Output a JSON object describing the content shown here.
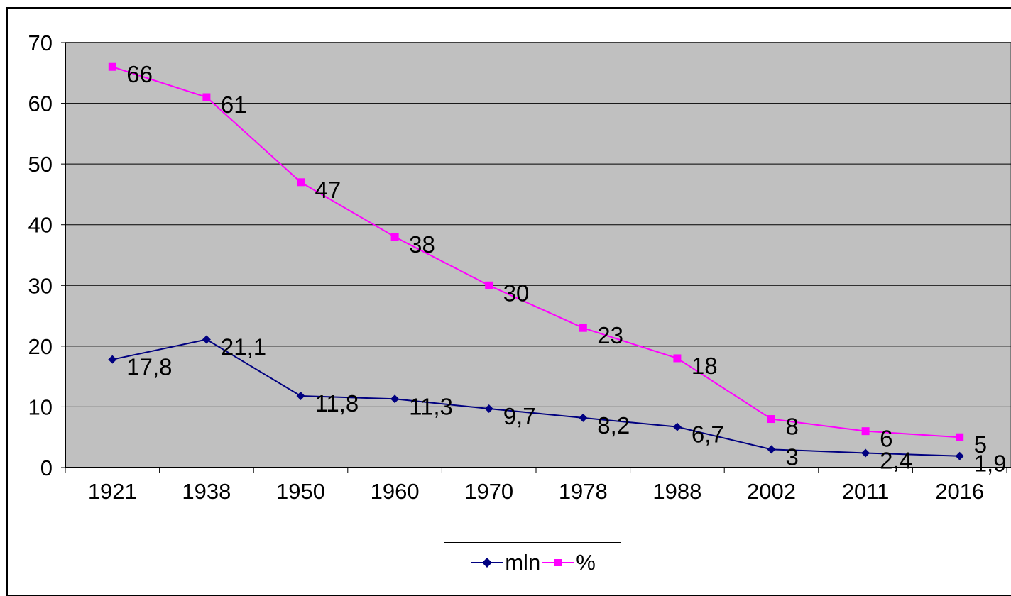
{
  "chart_data": {
    "type": "line",
    "categories": [
      "1921",
      "1938",
      "1950",
      "1960",
      "1970",
      "1978",
      "1988",
      "2002",
      "2011",
      "2016"
    ],
    "series": [
      {
        "name": "mln",
        "values": [
          17.8,
          21.1,
          11.8,
          11.3,
          9.7,
          8.2,
          6.7,
          3,
          2.4,
          1.9
        ],
        "labels": [
          "17,8",
          "21,1",
          "11,8",
          "11,3",
          "9,7",
          "8,2",
          "6,7",
          "3",
          "2,4",
          "1,9"
        ],
        "color": "#000080",
        "marker": "diamond"
      },
      {
        "name": "%",
        "values": [
          66,
          61,
          47,
          38,
          30,
          23,
          18,
          8,
          6,
          5
        ],
        "labels": [
          "66",
          "61",
          "47",
          "38",
          "30",
          "23",
          "18",
          "8",
          "6",
          "5"
        ],
        "color": "#ff00ff",
        "marker": "square"
      }
    ],
    "yticks": [
      "0",
      "10",
      "20",
      "30",
      "40",
      "50",
      "60",
      "70"
    ],
    "ylim": [
      0,
      70
    ],
    "grid": true,
    "plot_background": "#c0c0c0",
    "legend_position": "bottom"
  },
  "legend": {
    "mln": "mln",
    "pct": "%"
  }
}
